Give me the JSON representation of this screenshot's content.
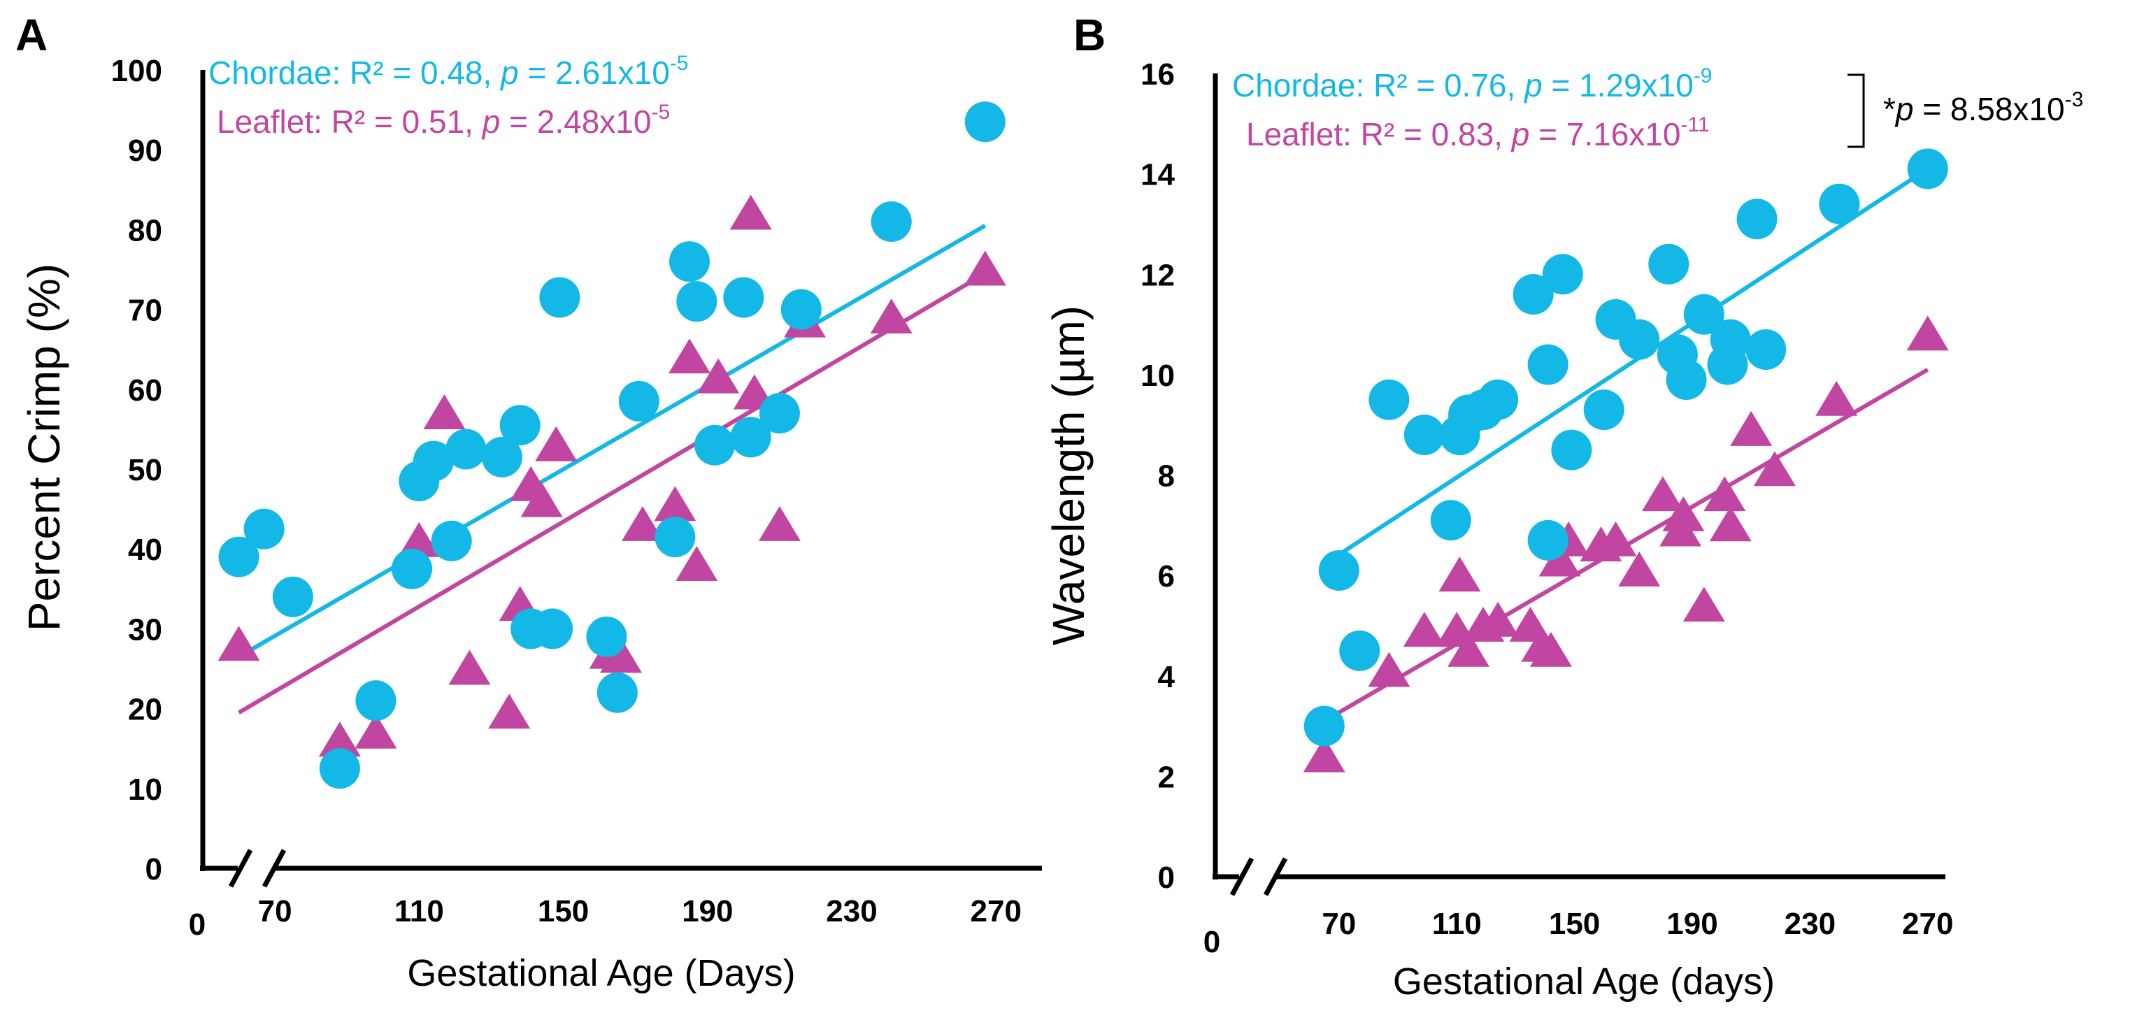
{
  "colors": {
    "chordae": "#13b8e6",
    "leaflet": "#c146a1",
    "text": "#000000"
  },
  "chart_data": [
    {
      "panel": "A",
      "type": "scatter",
      "xlabel": "Gestational Age (Days)",
      "ylabel": "Percent Crimp (%)",
      "xlim": [
        50,
        275
      ],
      "ylim": [
        0,
        100
      ],
      "xbreak_label": "0",
      "xticks": [
        70,
        110,
        150,
        190,
        230,
        270
      ],
      "yticks": [
        0,
        10,
        20,
        30,
        40,
        50,
        60,
        70,
        80,
        90,
        100
      ],
      "stats": [
        {
          "name": "Chordae",
          "text": "Chordae: R² = 0.48, ",
          "p_sym": "p",
          "p_text": " = 2.61x10",
          "exp": "-5"
        },
        {
          "name": "Leaflet",
          "text": "Leaflet: R² = 0.51,   ",
          "p_sym": "p",
          "p_text": " = 2.48x10",
          "exp": "-5"
        }
      ],
      "series": [
        {
          "name": "Chordae",
          "marker": "circle",
          "points": [
            [
              60,
              39
            ],
            [
              67,
              42.5
            ],
            [
              75,
              34
            ],
            [
              88,
              12.5
            ],
            [
              98,
              21
            ],
            [
              108,
              37.5
            ],
            [
              110,
              48.5
            ],
            [
              114,
              51
            ],
            [
              119,
              41
            ],
            [
              123,
              52.5
            ],
            [
              133,
              51.5
            ],
            [
              138,
              55.5
            ],
            [
              141,
              30
            ],
            [
              147,
              30
            ],
            [
              149,
              71.5
            ],
            [
              162,
              29
            ],
            [
              165,
              22
            ],
            [
              171,
              58.5
            ],
            [
              181,
              41.5
            ],
            [
              185,
              76
            ],
            [
              187,
              71
            ],
            [
              192,
              53
            ],
            [
              200,
              71.5
            ],
            [
              202,
              54
            ],
            [
              210,
              57
            ],
            [
              216,
              70
            ],
            [
              241,
              81
            ],
            [
              267,
              93.5
            ]
          ],
          "fit": [
            [
              60,
              26.5
            ],
            [
              267,
              80.5
            ]
          ]
        },
        {
          "name": "Leaflet",
          "marker": "triangle",
          "points": [
            [
              60,
              28
            ],
            [
              88,
              16
            ],
            [
              98,
              17
            ],
            [
              110,
              41
            ],
            [
              117,
              57
            ],
            [
              124,
              25
            ],
            [
              135,
              19.5
            ],
            [
              138,
              33
            ],
            [
              141,
              48
            ],
            [
              144,
              46
            ],
            [
              148,
              53
            ],
            [
              163,
              27
            ],
            [
              166,
              26.5
            ],
            [
              172,
              43
            ],
            [
              181,
              45.5
            ],
            [
              185,
              64
            ],
            [
              187,
              38
            ],
            [
              193,
              61.5
            ],
            [
              202,
              82
            ],
            [
              203,
              59.5
            ],
            [
              210,
              43
            ],
            [
              217,
              68.5
            ],
            [
              241,
              69
            ],
            [
              267,
              75
            ]
          ],
          "fit": [
            [
              60,
              19.5
            ],
            [
              267,
              74.5
            ]
          ]
        }
      ]
    },
    {
      "panel": "B",
      "type": "scatter",
      "xlabel": "Gestational Age (days)",
      "ylabel": "Wavelength (µm)",
      "xlim": [
        28,
        276
      ],
      "ylim": [
        0,
        16
      ],
      "xbreak_label": "0",
      "xticks": [
        70,
        110,
        150,
        190,
        230,
        270
      ],
      "yticks": [
        0,
        2,
        4,
        6,
        8,
        10,
        12,
        14,
        16
      ],
      "stats": [
        {
          "name": "Chordae",
          "text": "Chordae: R² = 0.76, ",
          "p_sym": "p",
          "p_text": " = 1.29x10",
          "exp": "-9"
        },
        {
          "name": "Leaflet",
          "text": "Leaflet: R² = 0.83,   ",
          "p_sym": "p",
          "p_text": " = 7.16x10",
          "exp": "-11"
        }
      ],
      "comparison": {
        "prefix": "*",
        "p_sym": "p",
        "p_text": " = 8.58x10",
        "exp": "-3"
      },
      "series": [
        {
          "name": "Chordae",
          "marker": "circle",
          "points": [
            [
              65,
              3
            ],
            [
              70,
              6.1
            ],
            [
              77,
              4.5
            ],
            [
              87,
              9.5
            ],
            [
              99,
              8.8
            ],
            [
              108,
              7.1
            ],
            [
              111,
              8.8
            ],
            [
              114,
              9.2
            ],
            [
              119,
              9.3
            ],
            [
              124,
              9.5
            ],
            [
              136,
              11.6
            ],
            [
              141,
              10.2
            ],
            [
              141,
              6.7
            ],
            [
              146,
              12
            ],
            [
              149,
              8.5
            ],
            [
              160,
              9.3
            ],
            [
              164,
              11.1
            ],
            [
              172,
              10.7
            ],
            [
              182,
              12.2
            ],
            [
              185,
              10.4
            ],
            [
              188,
              9.9
            ],
            [
              194,
              11.2
            ],
            [
              202,
              10.2
            ],
            [
              203,
              10.7
            ],
            [
              212,
              13.1
            ],
            [
              215,
              10.5
            ],
            [
              240,
              13.4
            ],
            [
              270,
              14.1
            ]
          ],
          "fit": [
            [
              67,
              6.3
            ],
            [
              270,
              14.1
            ]
          ]
        },
        {
          "name": "Leaflet",
          "marker": "triangle",
          "points": [
            [
              65,
              2.4
            ],
            [
              87,
              4.1
            ],
            [
              99,
              4.9
            ],
            [
              110,
              4.9
            ],
            [
              111,
              6
            ],
            [
              114,
              4.5
            ],
            [
              119,
              5
            ],
            [
              124,
              5.1
            ],
            [
              135,
              5
            ],
            [
              139,
              4.6
            ],
            [
              142,
              4.5
            ],
            [
              145,
              6.3
            ],
            [
              148,
              6.7
            ],
            [
              159,
              6.6
            ],
            [
              164,
              6.7
            ],
            [
              172,
              6.1
            ],
            [
              180,
              7.6
            ],
            [
              186,
              6.9
            ],
            [
              187,
              7.2
            ],
            [
              194,
              5.4
            ],
            [
              201,
              7.6
            ],
            [
              203,
              7
            ],
            [
              210,
              8.9
            ],
            [
              218,
              8.1
            ],
            [
              239,
              9.5
            ],
            [
              270,
              10.8
            ]
          ],
          "fit": [
            [
              65,
              3.1
            ],
            [
              270,
              10.1
            ]
          ]
        }
      ]
    }
  ]
}
